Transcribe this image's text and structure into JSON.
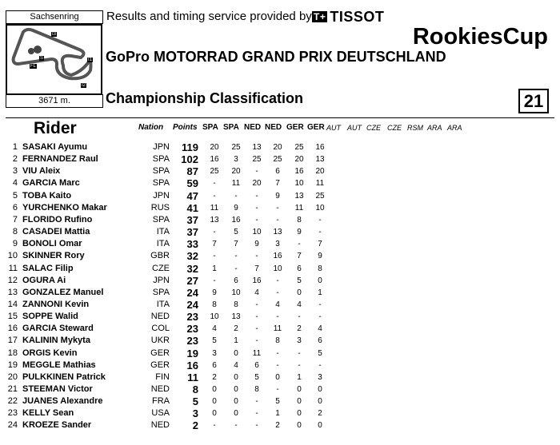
{
  "header": {
    "circuit": "Sachsenring",
    "length": "3671 m.",
    "provided_by": "Results and timing service provided by",
    "sponsor_logo": "TISSOT",
    "sponsor_mark": "T+",
    "series": "RookiesCup",
    "event": "GoPro MOTORRAD GRAND PRIX DEUTSCHLAND",
    "title": "Championship Classification",
    "page_number": "21",
    "map_labels": [
      "I3",
      "S",
      "FL",
      "I1",
      "I2"
    ]
  },
  "columns": {
    "rider": "Rider",
    "nation": "Nation",
    "points": "Points",
    "races": [
      "SPA",
      "SPA",
      "NED",
      "NED",
      "GER",
      "GER",
      "AUT",
      "AUT",
      "CZE",
      "CZE",
      "RSM",
      "ARA",
      "ARA"
    ]
  },
  "rows": [
    {
      "pos": "1",
      "name": "SASAKI Ayumu",
      "nation": "JPN",
      "points": "119",
      "r": [
        "20",
        "25",
        "13",
        "20",
        "25",
        "16"
      ]
    },
    {
      "pos": "2",
      "name": "FERNANDEZ Raul",
      "nation": "SPA",
      "points": "102",
      "r": [
        "16",
        "3",
        "25",
        "25",
        "20",
        "13"
      ]
    },
    {
      "pos": "3",
      "name": "VIU Aleix",
      "nation": "SPA",
      "points": "87",
      "r": [
        "25",
        "20",
        "-",
        "6",
        "16",
        "20"
      ]
    },
    {
      "pos": "4",
      "name": "GARCIA Marc",
      "nation": "SPA",
      "points": "59",
      "r": [
        "-",
        "11",
        "20",
        "7",
        "10",
        "11"
      ]
    },
    {
      "pos": "5",
      "name": "TOBA Kaito",
      "nation": "JPN",
      "points": "47",
      "r": [
        "-",
        "-",
        "-",
        "9",
        "13",
        "25"
      ]
    },
    {
      "pos": "6",
      "name": "YURCHENKO Makar",
      "nation": "RUS",
      "points": "41",
      "r": [
        "11",
        "9",
        "-",
        "-",
        "11",
        "10"
      ]
    },
    {
      "pos": "7",
      "name": "FLORIDO Rufino",
      "nation": "SPA",
      "points": "37",
      "r": [
        "13",
        "16",
        "-",
        "-",
        "8",
        "-"
      ]
    },
    {
      "pos": "8",
      "name": "CASADEI Mattia",
      "nation": "ITA",
      "points": "37",
      "r": [
        "-",
        "5",
        "10",
        "13",
        "9",
        "-"
      ]
    },
    {
      "pos": "9",
      "name": "BONOLI Omar",
      "nation": "ITA",
      "points": "33",
      "r": [
        "7",
        "7",
        "9",
        "3",
        "-",
        "7"
      ]
    },
    {
      "pos": "10",
      "name": "SKINNER Rory",
      "nation": "GBR",
      "points": "32",
      "r": [
        "-",
        "-",
        "-",
        "16",
        "7",
        "9"
      ]
    },
    {
      "pos": "11",
      "name": "SALAC Filip",
      "nation": "CZE",
      "points": "32",
      "r": [
        "1",
        "-",
        "7",
        "10",
        "6",
        "8"
      ]
    },
    {
      "pos": "12",
      "name": "OGURA Ai",
      "nation": "JPN",
      "points": "27",
      "r": [
        "-",
        "6",
        "16",
        "-",
        "5",
        "0"
      ]
    },
    {
      "pos": "13",
      "name": "GONZALEZ Manuel",
      "nation": "SPA",
      "points": "24",
      "r": [
        "9",
        "10",
        "4",
        "-",
        "0",
        "1"
      ]
    },
    {
      "pos": "14",
      "name": "ZANNONI Kevin",
      "nation": "ITA",
      "points": "24",
      "r": [
        "8",
        "8",
        "-",
        "4",
        "4",
        "-"
      ]
    },
    {
      "pos": "15",
      "name": "SOPPE Walid",
      "nation": "NED",
      "points": "23",
      "r": [
        "10",
        "13",
        "-",
        "-",
        "-",
        "-"
      ]
    },
    {
      "pos": "16",
      "name": "GARCIA Steward",
      "nation": "COL",
      "points": "23",
      "r": [
        "4",
        "2",
        "-",
        "11",
        "2",
        "4"
      ]
    },
    {
      "pos": "17",
      "name": "KALININ Mykyta",
      "nation": "UKR",
      "points": "23",
      "r": [
        "5",
        "1",
        "-",
        "8",
        "3",
        "6"
      ]
    },
    {
      "pos": "18",
      "name": "ORGIS Kevin",
      "nation": "GER",
      "points": "19",
      "r": [
        "3",
        "0",
        "11",
        "-",
        "-",
        "5"
      ]
    },
    {
      "pos": "19",
      "name": "MEGGLE Mathias",
      "nation": "GER",
      "points": "16",
      "r": [
        "6",
        "4",
        "6",
        "-",
        "-",
        "-"
      ]
    },
    {
      "pos": "20",
      "name": "PULKKINEN Patrick",
      "nation": "FIN",
      "points": "11",
      "r": [
        "2",
        "0",
        "5",
        "0",
        "1",
        "3"
      ]
    },
    {
      "pos": "21",
      "name": "STEEMAN Victor",
      "nation": "NED",
      "points": "8",
      "r": [
        "0",
        "0",
        "8",
        "-",
        "0",
        "0"
      ]
    },
    {
      "pos": "22",
      "name": "JUANES Alexandre",
      "nation": "FRA",
      "points": "5",
      "r": [
        "0",
        "0",
        "-",
        "5",
        "0",
        "0"
      ]
    },
    {
      "pos": "23",
      "name": "KELLY Sean",
      "nation": "USA",
      "points": "3",
      "r": [
        "0",
        "0",
        "-",
        "1",
        "0",
        "2"
      ]
    },
    {
      "pos": "24",
      "name": "KROEZE Sander",
      "nation": "NED",
      "points": "2",
      "r": [
        "-",
        "-",
        "-",
        "2",
        "0",
        "0"
      ]
    }
  ]
}
